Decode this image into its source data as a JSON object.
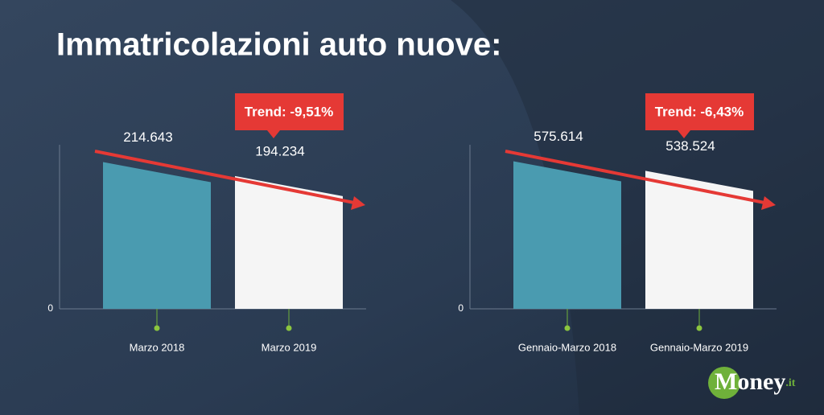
{
  "title": "Immatricolazioni auto nuove:",
  "logo": {
    "main": "Money",
    "suffix": ".it"
  },
  "chart_data": [
    {
      "type": "bar",
      "categories": [
        "Marzo 2018",
        "Marzo 2019"
      ],
      "values": [
        214643,
        194234
      ],
      "value_labels": [
        "214.643",
        "194.234"
      ],
      "colors": [
        "#4a9bb0",
        "#f5f5f5"
      ],
      "annotation": "Trend: -9,51%",
      "ylim": [
        0,
        240000
      ],
      "yticks": [
        0
      ]
    },
    {
      "type": "bar",
      "categories": [
        "Gennaio-Marzo 2018",
        "Gennaio-Marzo 2019"
      ],
      "values": [
        575614,
        538524
      ],
      "value_labels": [
        "575.614",
        "538.524"
      ],
      "colors": [
        "#4a9bb0",
        "#f5f5f5"
      ],
      "annotation": "Trend: -6,43%",
      "ylim": [
        0,
        640000
      ],
      "yticks": [
        0
      ]
    }
  ]
}
